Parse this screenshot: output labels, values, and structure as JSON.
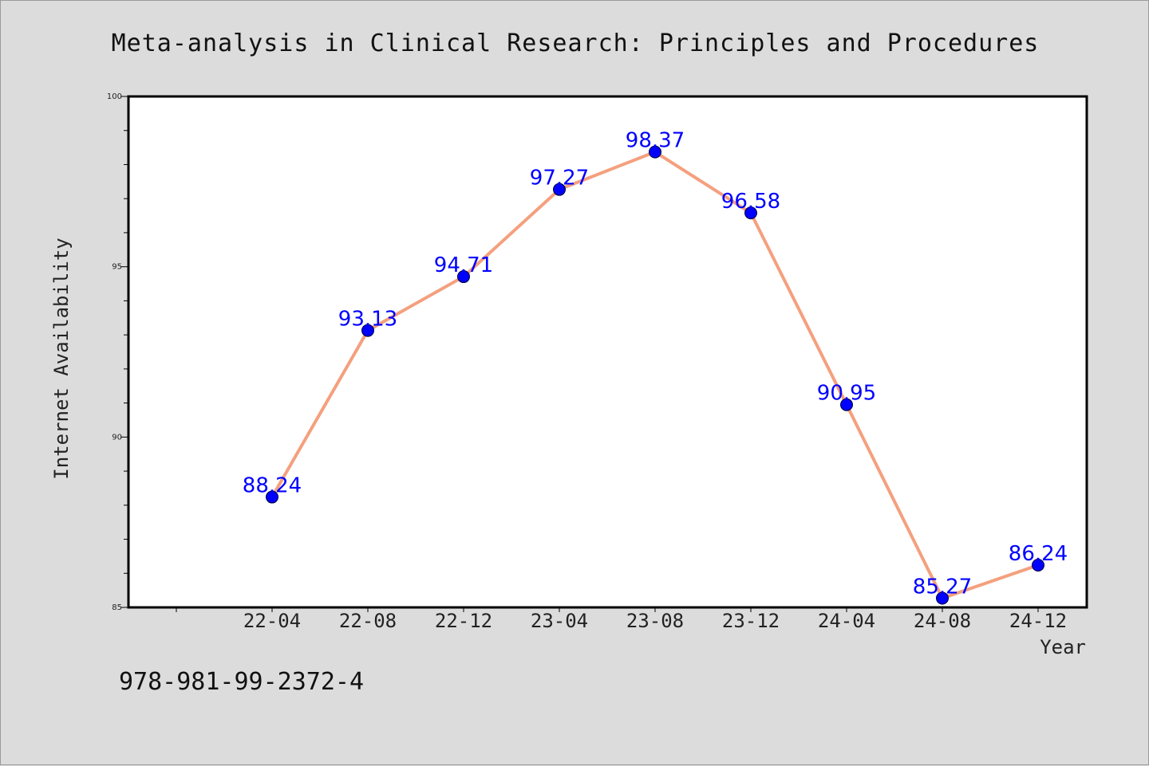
{
  "chart_data": {
    "type": "line",
    "title": "Meta-analysis in Clinical Research: Principles and Procedures",
    "xlabel": "Year",
    "ylabel": "Internet Availability",
    "categories": [
      "22-04",
      "22-08",
      "22-12",
      "23-04",
      "23-08",
      "23-12",
      "24-04",
      "24-08",
      "24-12"
    ],
    "series": [
      {
        "values": [
          88.24,
          93.13,
          94.71,
          97.27,
          98.37,
          96.58,
          90.95,
          85.27,
          86.24
        ],
        "line_color": "#f4a07e",
        "marker_color": "#0000ff",
        "label_color": "#0000ff"
      }
    ],
    "data_labels": [
      "88.24",
      "93.13",
      "94.71",
      "97.27",
      "98.37",
      "96.58",
      "90.95",
      "85.27",
      "86.24"
    ],
    "ylim": [
      85,
      100
    ],
    "yticks": [
      85,
      90,
      95,
      100
    ],
    "ytick_labels": [
      "85",
      "90",
      "95",
      "100"
    ],
    "grid": false,
    "legend": "none"
  },
  "footnote": "978-981-99-2372-4",
  "colors": {
    "background": "#dcdcdc",
    "plot_background": "#ffffff",
    "axis": "#000000"
  }
}
